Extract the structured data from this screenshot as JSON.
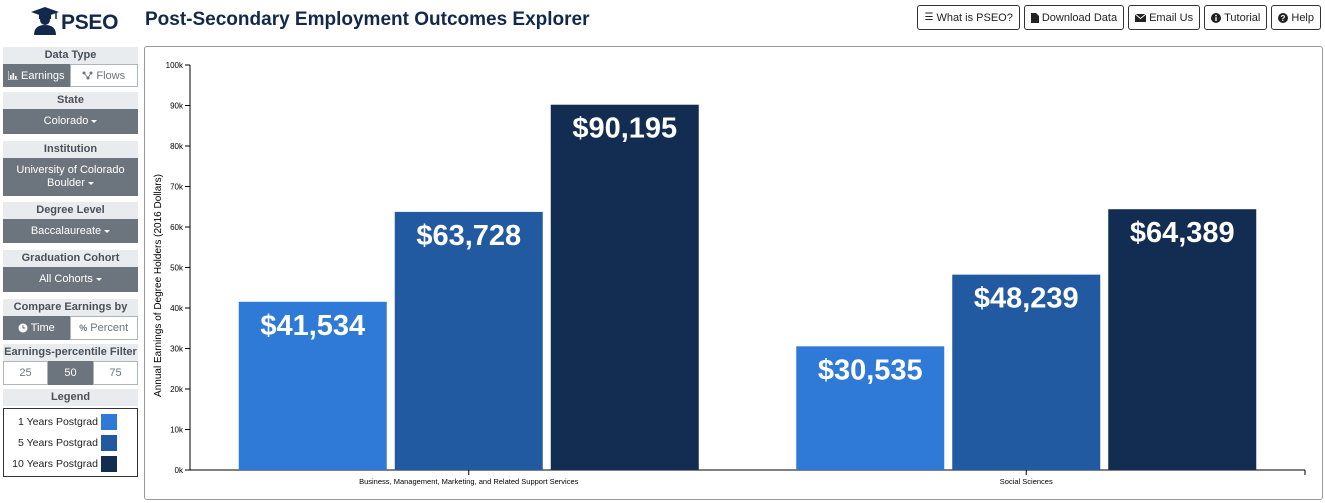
{
  "header": {
    "logo_text": "PSEO",
    "title": "Post-Secondary Employment Outcomes Explorer",
    "buttons": [
      {
        "label": "What is PSEO?",
        "icon": "list-icon"
      },
      {
        "label": "Download Data",
        "icon": "file-icon"
      },
      {
        "label": "Email Us",
        "icon": "envelope-icon"
      },
      {
        "label": "Tutorial",
        "icon": "info-circle-icon"
      },
      {
        "label": "Help",
        "icon": "question-circle-icon"
      }
    ]
  },
  "sidebar": {
    "data_type": {
      "title": "Data Type",
      "options": [
        "Earnings",
        "Flows"
      ],
      "selected": "Earnings"
    },
    "state": {
      "title": "State",
      "value": "Colorado"
    },
    "institution": {
      "title": "Institution",
      "value_line1": "University of Colorado",
      "value_line2": "Boulder"
    },
    "degree_level": {
      "title": "Degree Level",
      "value": "Baccalaureate"
    },
    "graduation_cohort": {
      "title": "Graduation Cohort",
      "value": "All Cohorts"
    },
    "compare_by": {
      "title": "Compare Earnings by",
      "options": [
        "Time",
        "Percent"
      ],
      "selected": "Time"
    },
    "percentile_filter": {
      "title": "Earnings-percentile Filter",
      "options": [
        "25",
        "50",
        "75"
      ],
      "selected": "50"
    },
    "legend": {
      "title": "Legend",
      "items": [
        {
          "label": "1 Years Postgrad",
          "color": "#2e7ad6"
        },
        {
          "label": "5 Years Postgrad",
          "color": "#215aa0"
        },
        {
          "label": "10 Years Postgrad",
          "color": "#132c51"
        }
      ]
    }
  },
  "chart_data": {
    "type": "bar",
    "ylabel": "Annual Earnings of Degree Holders (2016 Dollars)",
    "ylim": [
      0,
      100000
    ],
    "yticks": [
      {
        "value": 0,
        "label": "0k"
      },
      {
        "value": 10000,
        "label": "10k"
      },
      {
        "value": 20000,
        "label": "20k"
      },
      {
        "value": 30000,
        "label": "30k"
      },
      {
        "value": 40000,
        "label": "40k"
      },
      {
        "value": 50000,
        "label": "50k"
      },
      {
        "value": 60000,
        "label": "60k"
      },
      {
        "value": 70000,
        "label": "70k"
      },
      {
        "value": 80000,
        "label": "80k"
      },
      {
        "value": 90000,
        "label": "90k"
      },
      {
        "value": 100000,
        "label": "100k"
      }
    ],
    "grid": false,
    "categories": [
      "Business, Management, Marketing, and Related Support Services",
      "Social Sciences"
    ],
    "series": [
      {
        "name": "1 Years Postgrad",
        "color": "#2e7ad6",
        "values": [
          41534,
          30535
        ],
        "labels": [
          "$41,534",
          "$30,535"
        ]
      },
      {
        "name": "5 Years Postgrad",
        "color": "#215aa0",
        "values": [
          63728,
          48239
        ],
        "labels": [
          "$63,728",
          "$48,239"
        ]
      },
      {
        "name": "10 Years Postgrad",
        "color": "#132c51",
        "values": [
          90195,
          64389
        ],
        "labels": [
          "$90,195",
          "$64,389"
        ]
      }
    ]
  }
}
